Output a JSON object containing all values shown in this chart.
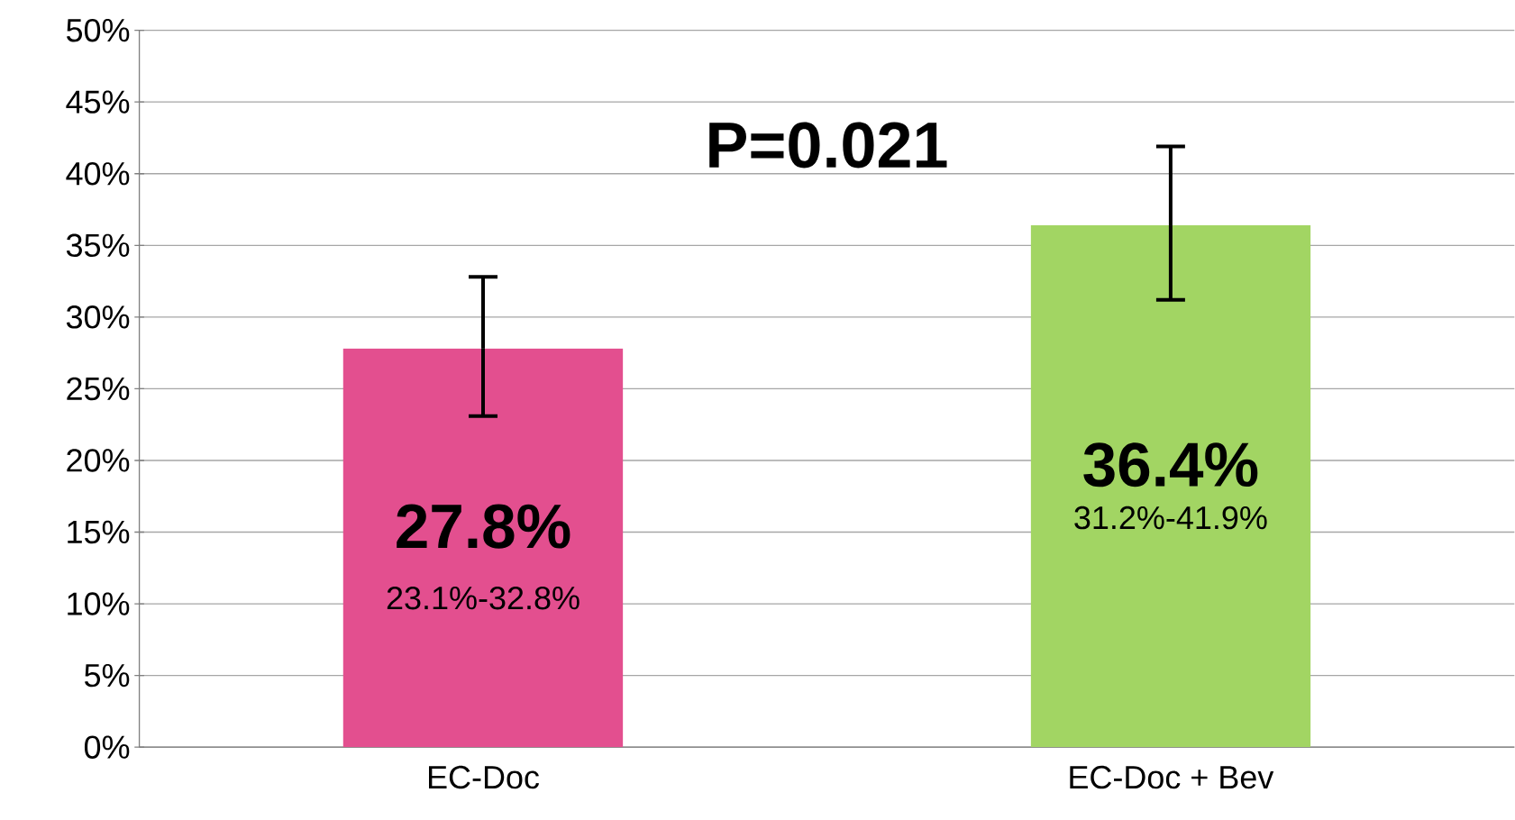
{
  "chart_data": {
    "type": "bar",
    "categories": [
      "EC-Doc",
      "EC-Doc + Bev"
    ],
    "values": [
      27.8,
      36.4
    ],
    "colors": [
      "#e34f8f",
      "#a2d563"
    ],
    "errors": [
      [
        23.1,
        32.8
      ],
      [
        31.2,
        41.9
      ]
    ],
    "value_labels": [
      "27.8%",
      "36.4%"
    ],
    "annotations": [
      "P=0.021",
      "23.1%-32.8%",
      "31.2%-41.9%"
    ],
    "ylim": [
      0,
      50
    ],
    "yticks": [
      {
        "value": 0,
        "label": "0%"
      },
      {
        "value": 5,
        "label": "5%"
      },
      {
        "value": 10,
        "label": "10%"
      },
      {
        "value": 15,
        "label": "15%"
      },
      {
        "value": 20,
        "label": "20%"
      },
      {
        "value": 25,
        "label": "25%"
      },
      {
        "value": 30,
        "label": "30%"
      },
      {
        "value": 35,
        "label": "35%"
      },
      {
        "value": 40,
        "label": "40%"
      },
      {
        "value": 45,
        "label": "45%"
      },
      {
        "value": 50,
        "label": "50%"
      }
    ],
    "grid": "y"
  }
}
